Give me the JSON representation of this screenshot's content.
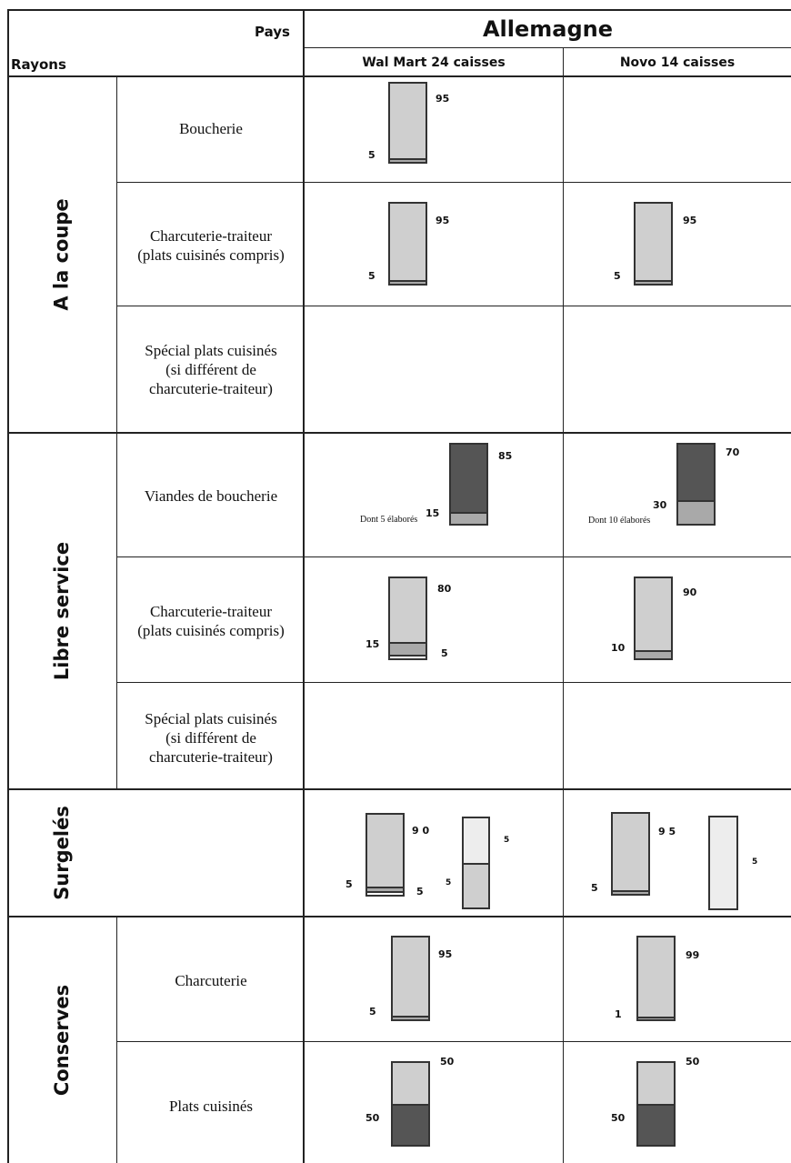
{
  "header": {
    "pays_label": "Pays",
    "rayons_label": "Rayons",
    "country": "Allemagne",
    "stores": [
      "Wal Mart 24 caisses",
      "Novo 14 caisses"
    ]
  },
  "categories": [
    "A la coupe",
    "Libre service",
    "Surgelés",
    "Conserves"
  ],
  "rows": [
    "Boucherie",
    "Charcuterie-traiteur\n(plats cuisinés compris)",
    "Spécial plats cuisinés\n(si différent de\ncharcuterie-traiteur)",
    "Viandes de boucherie",
    "Charcuterie-traiteur\n(plats cuisinés compris)",
    "Spécial plats cuisinés\n(si différent de\ncharcuterie-traiteur)",
    "",
    "Charcuterie",
    "Plats cuisinés"
  ],
  "chart_data": {
    "type": "stacked-bar-table",
    "colors": {
      "light": "#cfcfcf",
      "mid": "#a9a9a9",
      "dark": "#555555",
      "pale": "#ededed"
    },
    "bars": [
      {
        "row": "Boucherie",
        "store": "Wal Mart 24 caisses",
        "segments": [
          95,
          5
        ],
        "labels": [
          "95",
          "5"
        ]
      },
      {
        "row": "Charcuterie-traiteur",
        "store": "Wal Mart 24 caisses",
        "segments": [
          95,
          5
        ],
        "labels": [
          "95",
          "5"
        ]
      },
      {
        "row": "Charcuterie-traiteur",
        "store": "Novo 14 caisses",
        "segments": [
          95,
          5
        ],
        "labels": [
          "95",
          "5"
        ]
      },
      {
        "row": "Viandes de boucherie",
        "store": "Wal Mart 24 caisses",
        "segments": [
          85,
          15
        ],
        "labels": [
          "85",
          "15"
        ],
        "note": "Dont 5 élaborés"
      },
      {
        "row": "Viandes de boucherie",
        "store": "Novo 14 caisses",
        "segments": [
          70,
          30
        ],
        "labels": [
          "70",
          "30"
        ],
        "note": "Dont 10 élaborés"
      },
      {
        "row": "Charcuterie-traiteur (libre service)",
        "store": "Wal Mart 24 caisses",
        "segments": [
          80,
          15,
          5
        ],
        "labels": [
          "80",
          "15",
          "5"
        ]
      },
      {
        "row": "Charcuterie-traiteur (libre service)",
        "store": "Novo 14 caisses",
        "segments": [
          90,
          10
        ],
        "labels": [
          "90",
          "10"
        ]
      },
      {
        "row": "Surgelés",
        "store": "Wal Mart 24 caisses",
        "segments": [
          90,
          5,
          5
        ],
        "labels": [
          "9 0",
          "5",
          "5"
        ]
      },
      {
        "row": "Surgelés (bar 2)",
        "store": "Wal Mart 24 caisses",
        "segments": [
          5,
          5
        ],
        "labels": [
          "5",
          "5"
        ]
      },
      {
        "row": "Surgelés",
        "store": "Novo 14 caisses",
        "segments": [
          95,
          5
        ],
        "labels": [
          "9 5",
          "5"
        ]
      },
      {
        "row": "Surgelés (bar 2)",
        "store": "Novo 14 caisses",
        "segments": [
          5
        ],
        "labels": [
          "5"
        ]
      },
      {
        "row": "Charcuterie (conserves)",
        "store": "Wal Mart 24 caisses",
        "segments": [
          95,
          5
        ],
        "labels": [
          "95",
          "5"
        ]
      },
      {
        "row": "Charcuterie (conserves)",
        "store": "Novo 14 caisses",
        "segments": [
          99,
          1
        ],
        "labels": [
          "99",
          "1"
        ]
      },
      {
        "row": "Plats cuisinés",
        "store": "Wal Mart 24 caisses",
        "segments": [
          50,
          50
        ],
        "labels": [
          "50",
          "50"
        ]
      },
      {
        "row": "Plats cuisinés",
        "store": "Novo 14 caisses",
        "segments": [
          50,
          50
        ],
        "labels": [
          "50",
          "50"
        ]
      }
    ]
  }
}
